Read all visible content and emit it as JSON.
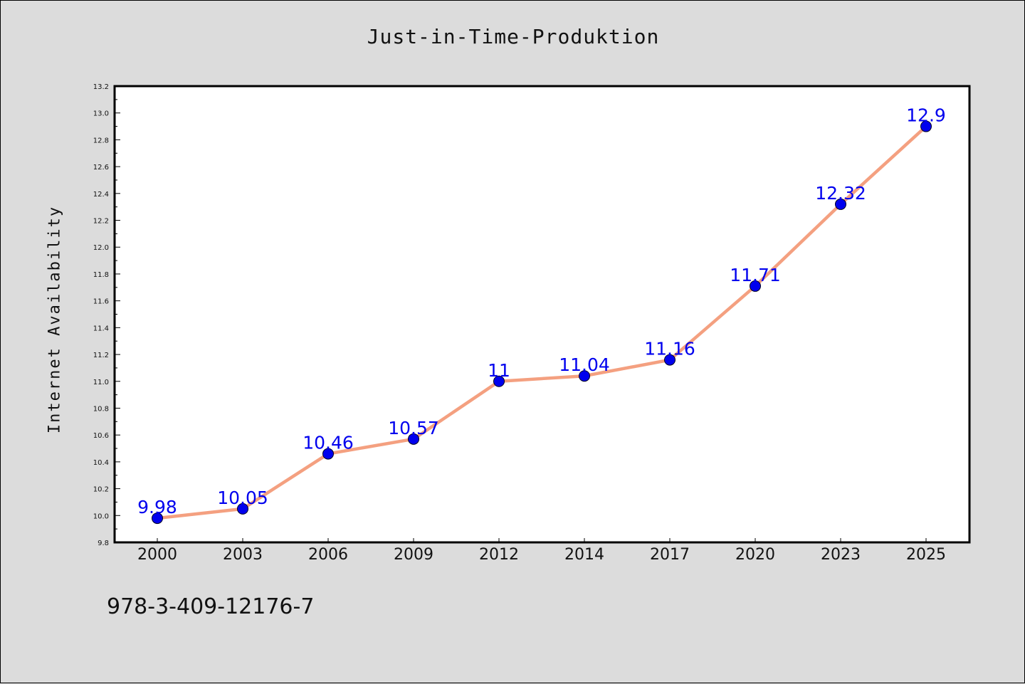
{
  "footnote": "978-3-409-12176-7",
  "colors": {
    "background": "#dcdcdc",
    "plot_area": "#ffffff",
    "line": "#f4a080",
    "marker": "#0000ee",
    "data_label": "#0000ee"
  },
  "chart_data": {
    "type": "line",
    "title": "Just-in-Time-Produktion",
    "xlabel": "",
    "ylabel": "Internet Availability",
    "categories": [
      "2000",
      "2003",
      "2006",
      "2009",
      "2012",
      "2014",
      "2017",
      "2020",
      "2023",
      "2025"
    ],
    "series": [
      {
        "values": [
          9.98,
          10.05,
          10.46,
          10.57,
          11,
          11.04,
          11.16,
          11.71,
          12.32,
          12.9
        ],
        "labels": [
          "9.98",
          "10.05",
          "10.46",
          "10.57",
          "11",
          "11.04",
          "11.16",
          "11.71",
          "12.32",
          "12.9"
        ]
      }
    ],
    "ylim": [
      9.8,
      13.2
    ],
    "yticks": [
      "9.8",
      "10.0",
      "10.2",
      "10.4",
      "10.6",
      "10.8",
      "11.0",
      "11.2",
      "11.4",
      "11.6",
      "11.8",
      "12.0",
      "12.2",
      "12.4",
      "12.6",
      "12.8",
      "13.0",
      "13.2"
    ],
    "grid": false,
    "legend": "none"
  }
}
